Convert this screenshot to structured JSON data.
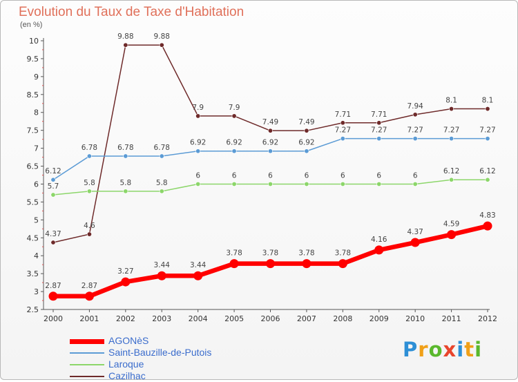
{
  "chart_data": {
    "type": "line",
    "title": "Evolution du Taux de Taxe d'Habitation",
    "ylabel": "(en %)",
    "x": [
      "2000",
      "2001",
      "2002",
      "2003",
      "2004",
      "2005",
      "2006",
      "2007",
      "2008",
      "2009",
      "2010",
      "2011",
      "2012"
    ],
    "ylim": [
      2.5,
      10
    ],
    "yticks": [
      "2.5",
      "3",
      "3.5",
      "4",
      "4.5",
      "5",
      "5.5",
      "6",
      "6.5",
      "7",
      "7.5",
      "8",
      "8.5",
      "9",
      "9.5",
      "10"
    ],
    "grid": false,
    "legend_position": "bottom-left",
    "series": [
      {
        "name": "AGONèS",
        "color": "#ff0000",
        "values": [
          2.87,
          2.87,
          3.27,
          3.44,
          3.44,
          3.78,
          3.78,
          3.78,
          3.78,
          4.16,
          4.37,
          4.59,
          4.83
        ],
        "labels": [
          "2.87",
          "2.87",
          "3.27",
          "3.44",
          "3.44",
          "3.78",
          "3.78",
          "3.78",
          "3.78",
          "4.16",
          "4.37",
          "4.59",
          "4.83"
        ]
      },
      {
        "name": "Saint-Bauzille-de-Putois",
        "color": "#5b9bd5",
        "values": [
          6.12,
          6.78,
          6.78,
          6.78,
          6.92,
          6.92,
          6.92,
          6.92,
          7.27,
          7.27,
          7.27,
          7.27,
          7.27
        ],
        "labels": [
          "6.12",
          "6.78",
          "6.78",
          "6.78",
          "6.92",
          "6.92",
          "6.92",
          "6.92",
          "7.27",
          "7.27",
          "7.27",
          "7.27",
          "7.27"
        ]
      },
      {
        "name": "Laroque",
        "color": "#8cd66a",
        "values": [
          5.7,
          5.8,
          5.8,
          5.8,
          6,
          6,
          6,
          6,
          6,
          6,
          6,
          6.12,
          6.12
        ],
        "labels": [
          "5.7",
          "5.8",
          "5.8",
          "5.8",
          "6",
          "6",
          "6",
          "6",
          "6",
          "6",
          "6",
          "6.12",
          "6.12"
        ]
      },
      {
        "name": "Cazilhac",
        "color": "#6e2a2a",
        "values": [
          4.37,
          4.6,
          9.88,
          9.88,
          7.9,
          7.9,
          7.49,
          7.49,
          7.71,
          7.71,
          7.94,
          8.1,
          8.1
        ],
        "labels": [
          "4.37",
          "4.6",
          "9.88",
          "9.88",
          "7.9",
          "7.9",
          "7.49",
          "7.49",
          "7.71",
          "7.71",
          "7.94",
          "8.1",
          "8.1"
        ]
      }
    ]
  },
  "brand": [
    "P",
    "r",
    "o",
    "x",
    "i",
    "t",
    "i"
  ]
}
